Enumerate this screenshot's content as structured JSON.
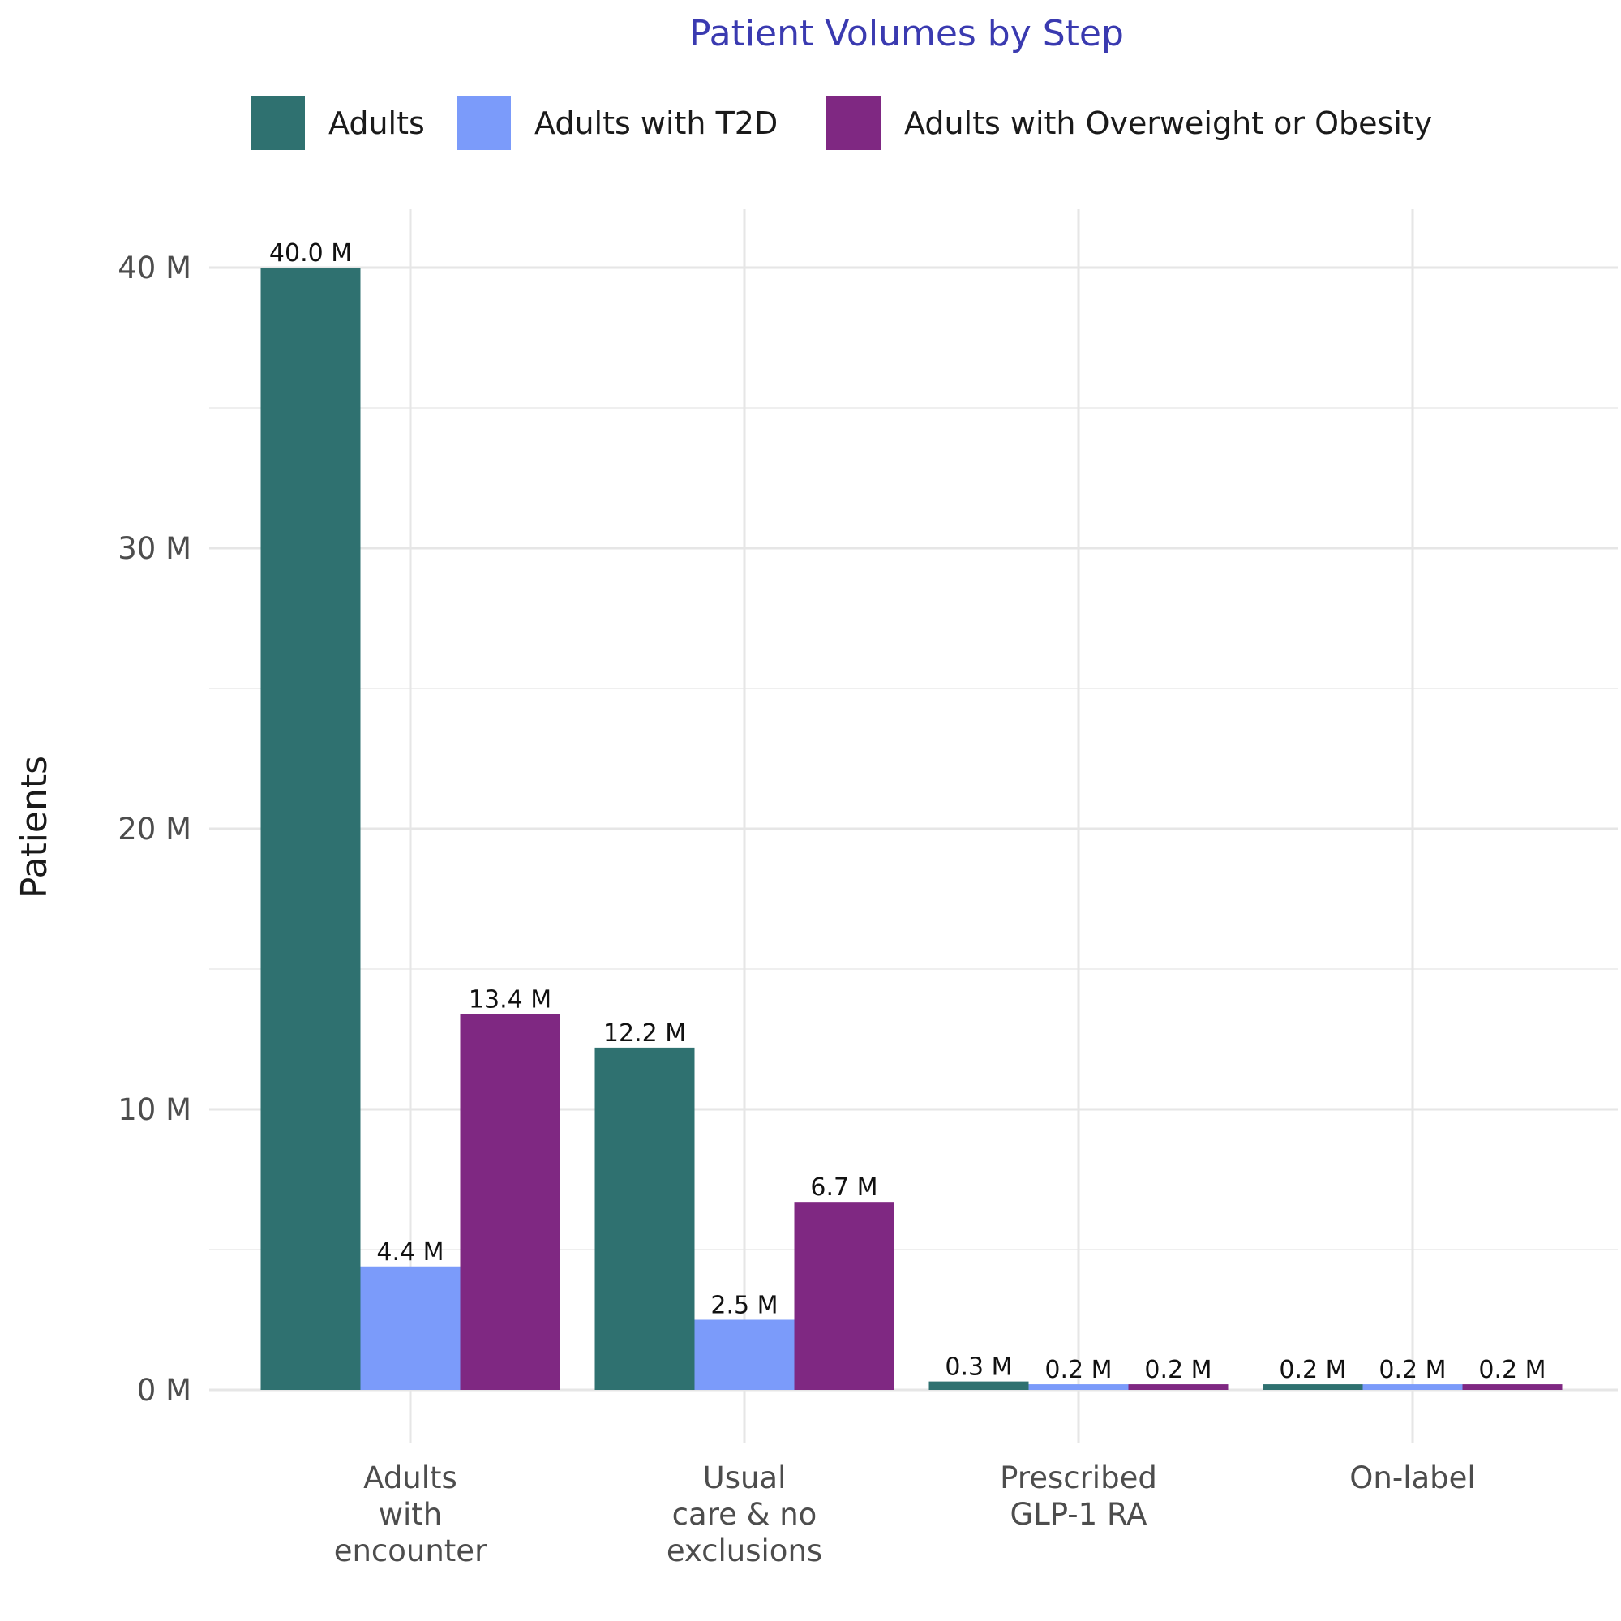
{
  "chart_data": {
    "type": "bar",
    "title": "Patient Volumes by Step",
    "xlabel": "",
    "ylabel": "Patients",
    "categories": [
      [
        "Adults",
        "with",
        "encounter"
      ],
      [
        "Usual",
        "care & no",
        "exclusions"
      ],
      [
        "Prescribed",
        "GLP-1 RA"
      ],
      [
        "On-label"
      ]
    ],
    "series": [
      {
        "name": "Adults",
        "color": "#2f7170",
        "values": [
          40.0,
          12.2,
          0.3,
          0.2
        ],
        "labels": [
          "40.0 M",
          "12.2 M",
          "0.3 M",
          "0.2 M"
        ]
      },
      {
        "name": "Adults with T2D",
        "color": "#7b9bfa",
        "values": [
          4.4,
          2.5,
          0.2,
          0.2
        ],
        "labels": [
          "4.4 M",
          "2.5 M",
          "0.2 M",
          "0.2 M"
        ]
      },
      {
        "name": "Adults with Overweight or Obesity",
        "color": "#7f2882",
        "values": [
          13.4,
          6.7,
          0.2,
          0.2
        ],
        "labels": [
          "13.4 M",
          "6.7 M",
          "0.2 M",
          "0.2 M"
        ]
      }
    ],
    "ylim": [
      -2.0,
      42.0
    ],
    "yticks": [
      0,
      10,
      20,
      30,
      40
    ],
    "ytick_labels": [
      "0 M",
      "10 M",
      "20 M",
      "30 M",
      "40 M"
    ],
    "grid": true,
    "legend_position": "top"
  }
}
